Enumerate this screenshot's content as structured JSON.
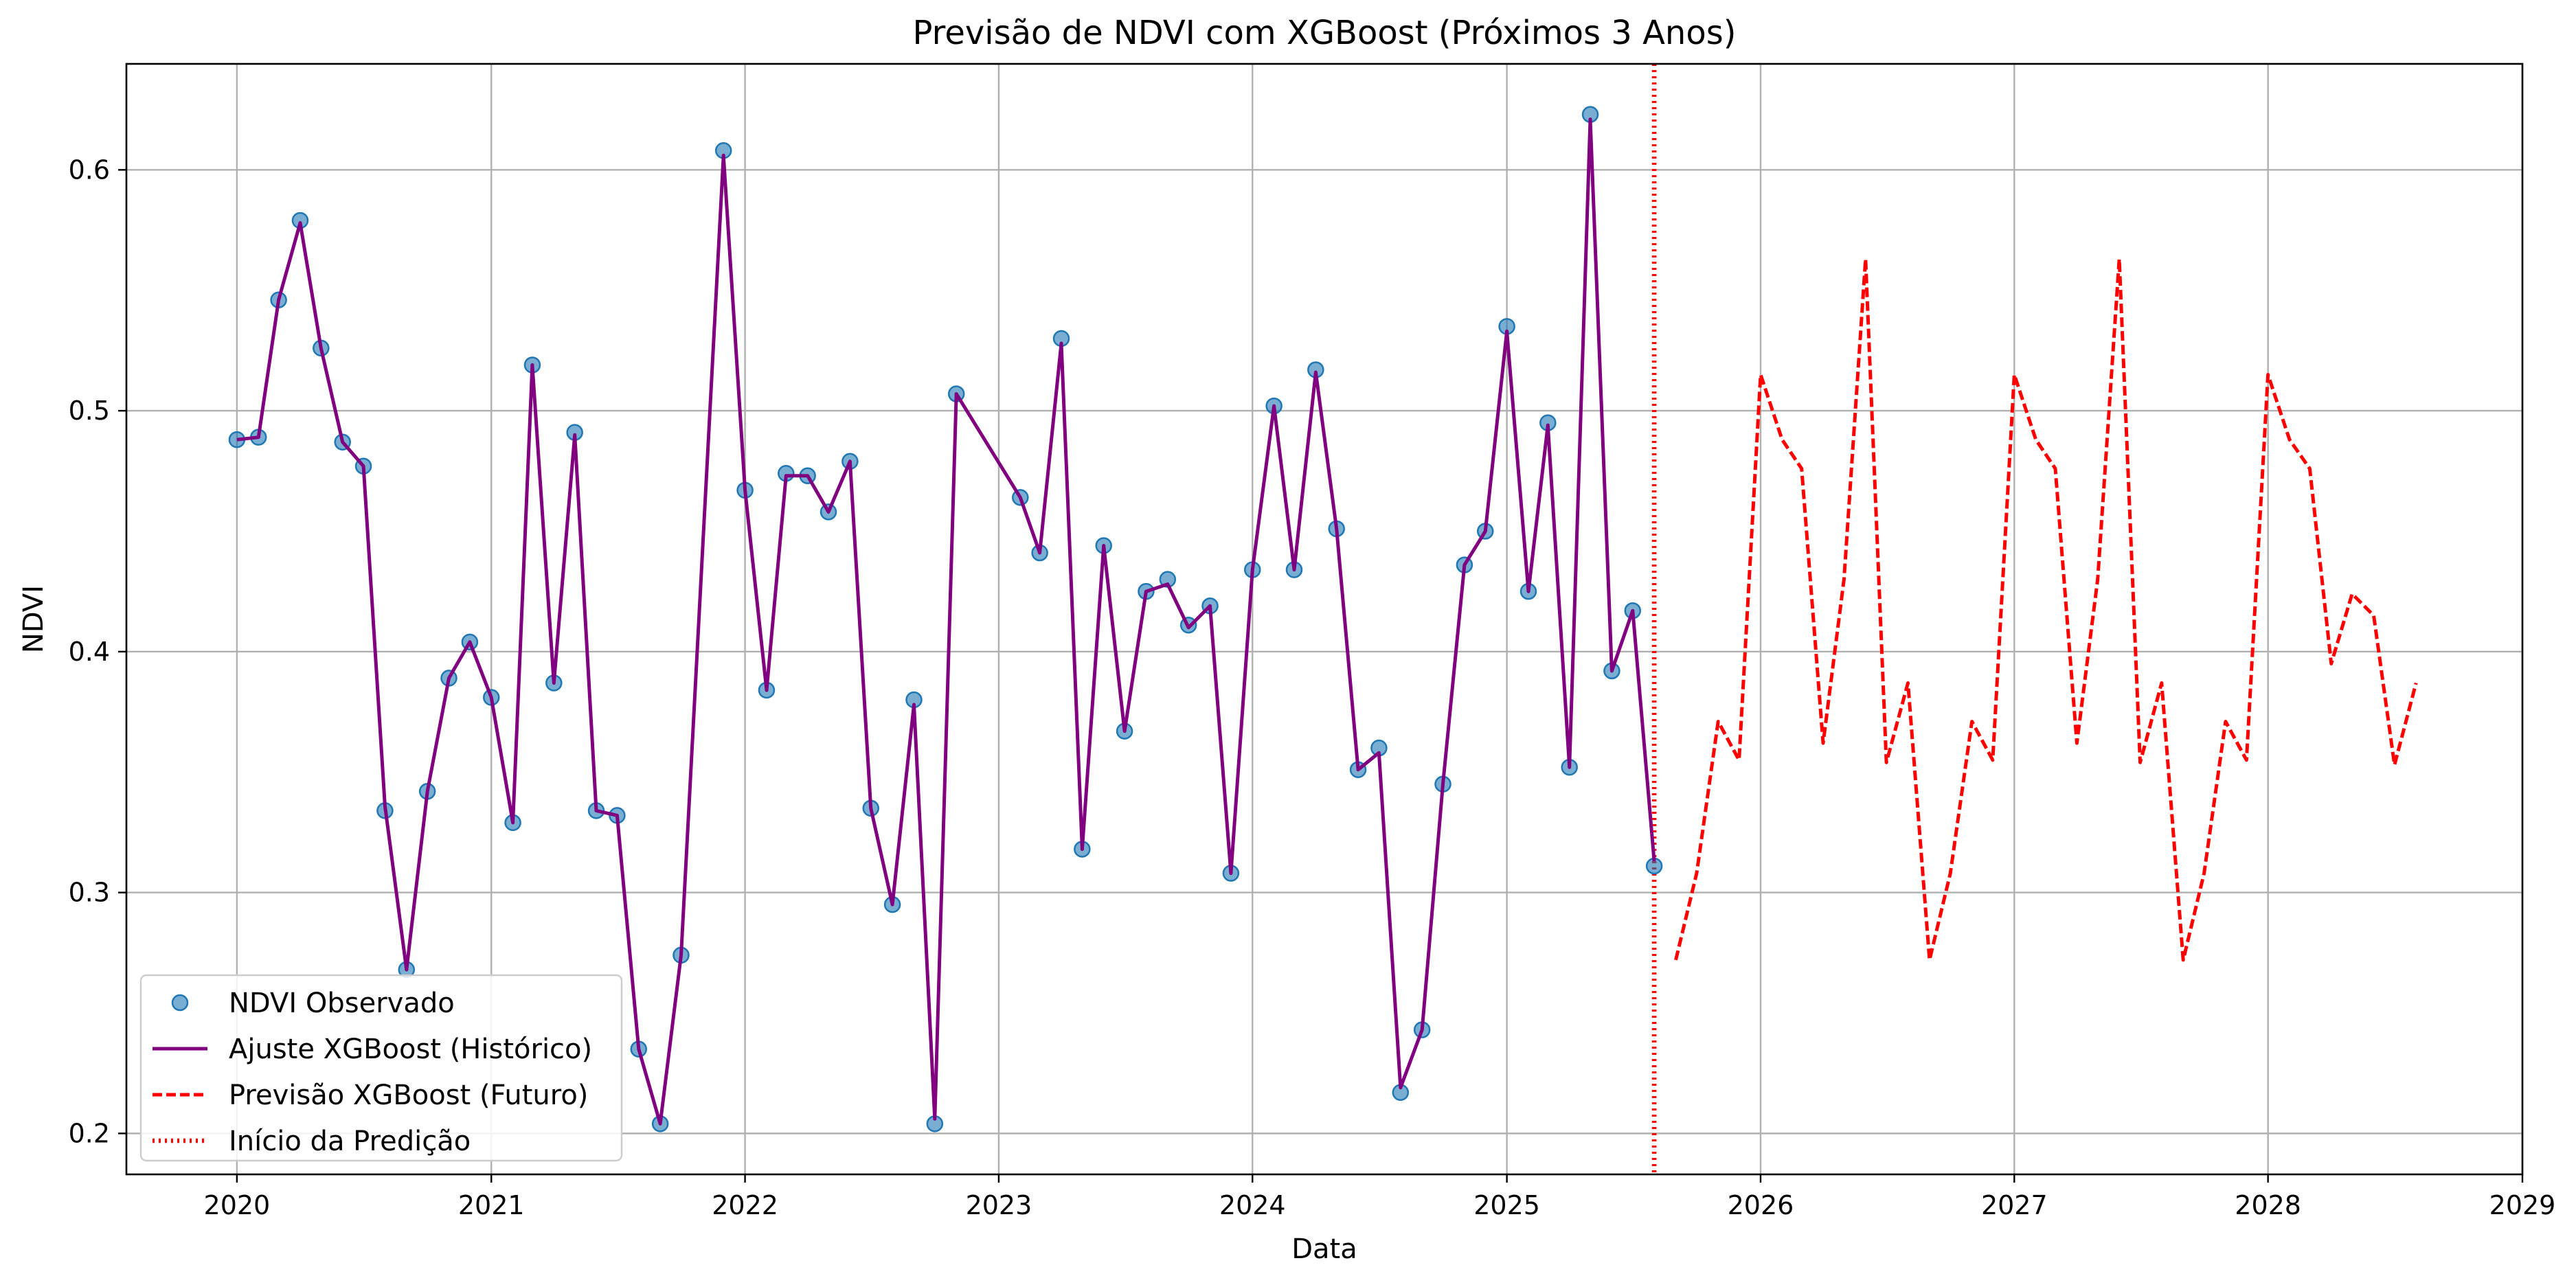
{
  "chart_data": {
    "type": "line",
    "title": "Previsão de NDVI com XGBoost (Próximos 3 Anos)",
    "xlabel": "Data",
    "ylabel": "NDVI",
    "xlim": [
      "2019-07-26",
      "2029-01-01"
    ],
    "ylim": [
      0.183,
      0.644
    ],
    "grid": true,
    "legend_position": "lower-left",
    "x_ticks": [
      "2020",
      "2021",
      "2022",
      "2023",
      "2024",
      "2025",
      "2026",
      "2027",
      "2028",
      "2029"
    ],
    "y_ticks": [
      "0.2",
      "0.3",
      "0.4",
      "0.5",
      "0.6"
    ],
    "prediction_start": "2025-08-01",
    "series": [
      {
        "name": "NDVI Observado",
        "style": "markers",
        "color": "#1f77b4",
        "points": [
          [
            "2020-01-01",
            0.488
          ],
          [
            "2020-02-01",
            0.489
          ],
          [
            "2020-03-01",
            0.546
          ],
          [
            "2020-04-01",
            0.579
          ],
          [
            "2020-05-01",
            0.526
          ],
          [
            "2020-06-01",
            0.487
          ],
          [
            "2020-07-01",
            0.477
          ],
          [
            "2020-08-01",
            0.334
          ],
          [
            "2020-09-01",
            0.268
          ],
          [
            "2020-10-01",
            0.342
          ],
          [
            "2020-11-01",
            0.389
          ],
          [
            "2020-12-01",
            0.404
          ],
          [
            "2021-01-01",
            0.381
          ],
          [
            "2021-02-01",
            0.329
          ],
          [
            "2021-03-01",
            0.519
          ],
          [
            "2021-04-01",
            0.387
          ],
          [
            "2021-05-01",
            0.491
          ],
          [
            "2021-06-01",
            0.334
          ],
          [
            "2021-07-01",
            0.332
          ],
          [
            "2021-08-01",
            0.235
          ],
          [
            "2021-09-01",
            0.204
          ],
          [
            "2021-10-01",
            0.274
          ],
          [
            "2021-12-01",
            0.608
          ],
          [
            "2022-01-01",
            0.467
          ],
          [
            "2022-02-01",
            0.384
          ],
          [
            "2022-03-01",
            0.474
          ],
          [
            "2022-04-01",
            0.473
          ],
          [
            "2022-05-01",
            0.458
          ],
          [
            "2022-06-01",
            0.479
          ],
          [
            "2022-07-01",
            0.335
          ],
          [
            "2022-08-01",
            0.295
          ],
          [
            "2022-09-01",
            0.38
          ],
          [
            "2022-10-01",
            0.204
          ],
          [
            "2022-11-01",
            0.507
          ],
          [
            "2023-02-01",
            0.464
          ],
          [
            "2023-03-01",
            0.441
          ],
          [
            "2023-04-01",
            0.53
          ],
          [
            "2023-05-01",
            0.318
          ],
          [
            "2023-06-01",
            0.444
          ],
          [
            "2023-07-01",
            0.367
          ],
          [
            "2023-08-01",
            0.425
          ],
          [
            "2023-09-01",
            0.43
          ],
          [
            "2023-10-01",
            0.411
          ],
          [
            "2023-11-01",
            0.419
          ],
          [
            "2023-12-01",
            0.308
          ],
          [
            "2024-01-01",
            0.434
          ],
          [
            "2024-02-01",
            0.502
          ],
          [
            "2024-03-01",
            0.434
          ],
          [
            "2024-04-01",
            0.517
          ],
          [
            "2024-05-01",
            0.451
          ],
          [
            "2024-06-01",
            0.351
          ],
          [
            "2024-07-01",
            0.36
          ],
          [
            "2024-08-01",
            0.217
          ],
          [
            "2024-09-01",
            0.243
          ],
          [
            "2024-10-01",
            0.345
          ],
          [
            "2024-11-01",
            0.436
          ],
          [
            "2024-12-01",
            0.45
          ],
          [
            "2025-01-01",
            0.535
          ],
          [
            "2025-02-01",
            0.425
          ],
          [
            "2025-03-01",
            0.495
          ],
          [
            "2025-04-01",
            0.352
          ],
          [
            "2025-05-01",
            0.623
          ],
          [
            "2025-06-01",
            0.392
          ],
          [
            "2025-07-01",
            0.417
          ],
          [
            "2025-08-01",
            0.311
          ]
        ]
      },
      {
        "name": "Ajuste XGBoost (Histórico)",
        "style": "solid",
        "color": "#800080",
        "points": [
          [
            "2020-01-01",
            0.488
          ],
          [
            "2020-02-01",
            0.489
          ],
          [
            "2020-03-01",
            0.546
          ],
          [
            "2020-04-01",
            0.578
          ],
          [
            "2020-05-01",
            0.526
          ],
          [
            "2020-06-01",
            0.487
          ],
          [
            "2020-07-01",
            0.477
          ],
          [
            "2020-08-01",
            0.336
          ],
          [
            "2020-09-01",
            0.268
          ],
          [
            "2020-10-01",
            0.342
          ],
          [
            "2020-11-01",
            0.389
          ],
          [
            "2020-12-01",
            0.404
          ],
          [
            "2021-01-01",
            0.381
          ],
          [
            "2021-02-01",
            0.329
          ],
          [
            "2021-03-01",
            0.519
          ],
          [
            "2021-04-01",
            0.387
          ],
          [
            "2021-05-01",
            0.49
          ],
          [
            "2021-06-01",
            0.334
          ],
          [
            "2021-07-01",
            0.332
          ],
          [
            "2021-08-01",
            0.235
          ],
          [
            "2021-09-01",
            0.204
          ],
          [
            "2021-10-01",
            0.274
          ],
          [
            "2021-12-01",
            0.606
          ],
          [
            "2022-01-01",
            0.467
          ],
          [
            "2022-02-01",
            0.384
          ],
          [
            "2022-03-01",
            0.473
          ],
          [
            "2022-04-01",
            0.473
          ],
          [
            "2022-05-01",
            0.458
          ],
          [
            "2022-06-01",
            0.479
          ],
          [
            "2022-07-01",
            0.335
          ],
          [
            "2022-08-01",
            0.295
          ],
          [
            "2022-09-01",
            0.378
          ],
          [
            "2022-10-01",
            0.206
          ],
          [
            "2022-11-01",
            0.507
          ],
          [
            "2023-02-01",
            0.464
          ],
          [
            "2023-03-01",
            0.441
          ],
          [
            "2023-04-01",
            0.528
          ],
          [
            "2023-05-01",
            0.318
          ],
          [
            "2023-06-01",
            0.444
          ],
          [
            "2023-07-01",
            0.367
          ],
          [
            "2023-08-01",
            0.425
          ],
          [
            "2023-09-01",
            0.428
          ],
          [
            "2023-10-01",
            0.41
          ],
          [
            "2023-11-01",
            0.419
          ],
          [
            "2023-12-01",
            0.308
          ],
          [
            "2024-01-01",
            0.434
          ],
          [
            "2024-02-01",
            0.502
          ],
          [
            "2024-03-01",
            0.434
          ],
          [
            "2024-04-01",
            0.516
          ],
          [
            "2024-05-01",
            0.451
          ],
          [
            "2024-06-01",
            0.351
          ],
          [
            "2024-07-01",
            0.358
          ],
          [
            "2024-08-01",
            0.219
          ],
          [
            "2024-09-01",
            0.243
          ],
          [
            "2024-10-01",
            0.345
          ],
          [
            "2024-11-01",
            0.436
          ],
          [
            "2024-12-01",
            0.45
          ],
          [
            "2025-01-01",
            0.533
          ],
          [
            "2025-02-01",
            0.425
          ],
          [
            "2025-03-01",
            0.494
          ],
          [
            "2025-04-01",
            0.352
          ],
          [
            "2025-05-01",
            0.621
          ],
          [
            "2025-06-01",
            0.392
          ],
          [
            "2025-07-01",
            0.417
          ],
          [
            "2025-08-01",
            0.313
          ]
        ]
      },
      {
        "name": "Previsão XGBoost (Futuro)",
        "style": "dashed",
        "color": "#ff0000",
        "points": [
          [
            "2025-09-01",
            0.272
          ],
          [
            "2025-10-01",
            0.308
          ],
          [
            "2025-11-01",
            0.371
          ],
          [
            "2025-12-01",
            0.355
          ],
          [
            "2026-01-01",
            0.515
          ],
          [
            "2026-02-01",
            0.488
          ],
          [
            "2026-03-01",
            0.476
          ],
          [
            "2026-04-01",
            0.362
          ],
          [
            "2026-05-01",
            0.43
          ],
          [
            "2026-06-01",
            0.563
          ],
          [
            "2026-07-01",
            0.354
          ],
          [
            "2026-08-01",
            0.387
          ],
          [
            "2026-09-01",
            0.272
          ],
          [
            "2026-10-01",
            0.308
          ],
          [
            "2026-11-01",
            0.371
          ],
          [
            "2026-12-01",
            0.355
          ],
          [
            "2027-01-01",
            0.515
          ],
          [
            "2027-02-01",
            0.488
          ],
          [
            "2027-03-01",
            0.476
          ],
          [
            "2027-04-01",
            0.362
          ],
          [
            "2027-05-01",
            0.43
          ],
          [
            "2027-06-01",
            0.563
          ],
          [
            "2027-07-01",
            0.354
          ],
          [
            "2027-08-01",
            0.387
          ],
          [
            "2027-09-01",
            0.272
          ],
          [
            "2027-10-01",
            0.308
          ],
          [
            "2027-11-01",
            0.371
          ],
          [
            "2027-12-01",
            0.355
          ],
          [
            "2028-01-01",
            0.515
          ],
          [
            "2028-02-01",
            0.488
          ],
          [
            "2028-03-01",
            0.476
          ],
          [
            "2028-04-01",
            0.395
          ],
          [
            "2028-05-01",
            0.424
          ],
          [
            "2028-06-01",
            0.415
          ],
          [
            "2028-07-01",
            0.353
          ],
          [
            "2028-08-01",
            0.387
          ]
        ]
      },
      {
        "name": "Início da Predição",
        "style": "dotted",
        "color": "#ff0000",
        "points": []
      }
    ]
  }
}
